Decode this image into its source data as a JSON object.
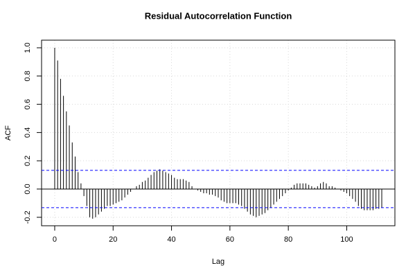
{
  "chart_data": {
    "type": "acf",
    "title": "Residual Autocorrelation Function",
    "x_label": "Lag",
    "y_label": "ACF",
    "x": [
      0,
      1,
      2,
      3,
      4,
      5,
      6,
      7,
      8,
      9,
      10,
      11,
      12,
      13,
      14,
      15,
      16,
      17,
      18,
      19,
      20,
      21,
      22,
      23,
      24,
      25,
      26,
      27,
      28,
      29,
      30,
      31,
      32,
      33,
      34,
      35,
      36,
      37,
      38,
      39,
      40,
      41,
      42,
      43,
      44,
      45,
      46,
      47,
      48,
      49,
      50,
      51,
      52,
      53,
      54,
      55,
      56,
      57,
      58,
      59,
      60,
      61,
      62,
      63,
      64,
      65,
      66,
      67,
      68,
      69,
      70,
      71,
      72,
      73,
      74,
      75,
      76,
      77,
      78,
      79,
      80,
      81,
      82,
      83,
      84,
      85,
      86,
      87,
      88,
      89,
      90,
      91,
      92,
      93,
      94,
      95,
      96,
      97,
      98,
      99,
      100,
      101,
      102,
      103,
      104,
      105,
      106,
      107,
      108,
      109,
      110,
      111,
      112
    ],
    "values": [
      1.0,
      0.91,
      0.78,
      0.66,
      0.55,
      0.45,
      0.33,
      0.23,
      0.12,
      0.04,
      -0.05,
      -0.12,
      -0.2,
      -0.21,
      -0.2,
      -0.18,
      -0.16,
      -0.14,
      -0.12,
      -0.12,
      -0.11,
      -0.1,
      -0.09,
      -0.08,
      -0.06,
      -0.04,
      -0.02,
      0.0,
      0.02,
      0.03,
      0.05,
      0.06,
      0.08,
      0.1,
      0.12,
      0.13,
      0.14,
      0.13,
      0.12,
      0.11,
      0.1,
      0.08,
      0.07,
      0.07,
      0.07,
      0.06,
      0.05,
      0.02,
      0.0,
      -0.01,
      -0.02,
      -0.03,
      -0.03,
      -0.04,
      -0.04,
      -0.05,
      -0.06,
      -0.08,
      -0.09,
      -0.1,
      -0.1,
      -0.1,
      -0.1,
      -0.11,
      -0.12,
      -0.14,
      -0.16,
      -0.18,
      -0.19,
      -0.2,
      -0.19,
      -0.18,
      -0.17,
      -0.15,
      -0.13,
      -0.11,
      -0.09,
      -0.07,
      -0.05,
      -0.03,
      -0.01,
      0.01,
      0.03,
      0.04,
      0.04,
      0.04,
      0.04,
      0.03,
      0.02,
      0.01,
      0.02,
      0.04,
      0.05,
      0.04,
      0.02,
      0.02,
      0.01,
      0.0,
      -0.01,
      -0.02,
      -0.03,
      -0.05,
      -0.07,
      -0.09,
      -0.12,
      -0.14,
      -0.15,
      -0.15,
      -0.15,
      -0.15,
      -0.14,
      -0.14,
      -0.13
    ],
    "color": "#000000",
    "confidence_bounds": [
      0.132,
      -0.132
    ],
    "confidence_color": "#0000ff",
    "xlim": [
      -4.5,
      116.5
    ],
    "ylim": [
      -0.26,
      1.054
    ],
    "xticks": [
      0,
      20,
      40,
      60,
      80,
      100
    ],
    "yticks": [
      -0.2,
      {
        "value": 0,
        "label": "0.0"
      },
      0.2,
      0.4,
      0.6,
      0.8,
      {
        "value": 1,
        "label": "1.0"
      }
    ],
    "grid": true
  }
}
